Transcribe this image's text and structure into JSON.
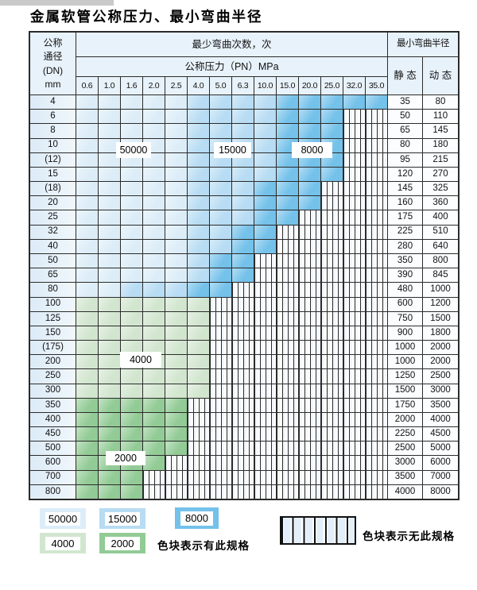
{
  "page": {
    "title": "金属软管公称压力、最小弯曲半径"
  },
  "table": {
    "dn_header_lines": [
      "公称",
      "通径",
      "(DN)",
      "mm"
    ],
    "bend_count_header": "最少弯曲次数，次",
    "pressure_header": "公称压力（PN）MPa",
    "pressure_columns": [
      "0.6",
      "1.0",
      "1.6",
      "2.0",
      "2.5",
      "4.0",
      "5.0",
      "6.3",
      "10.0",
      "15.0",
      "20.0",
      "25.0",
      "32.0",
      "35.0"
    ],
    "radius_header": "最小弯曲半径",
    "static_header": "静 态",
    "dynamic_header": "动 态",
    "bend_count_values": {
      "blue_light": "50000",
      "blue_mid": "15000",
      "blue_dark": "8000",
      "green_light": "4000",
      "green_dark": "2000"
    },
    "rows": [
      {
        "dn": "4",
        "st": "35",
        "dy": "80",
        "region": "blue",
        "last": 13,
        "mid": 5,
        "dark": 9
      },
      {
        "dn": "6",
        "st": "50",
        "dy": "110",
        "region": "blue",
        "last": 11,
        "mid": 5,
        "dark": 9
      },
      {
        "dn": "8",
        "st": "65",
        "dy": "145",
        "region": "blue",
        "last": 11,
        "mid": 5,
        "dark": 9
      },
      {
        "dn": "10",
        "st": "80",
        "dy": "180",
        "region": "blue",
        "last": 11,
        "mid": 5,
        "dark": 9
      },
      {
        "dn": "(12)",
        "st": "95",
        "dy": "215",
        "region": "blue",
        "last": 11,
        "mid": 5,
        "dark": 9
      },
      {
        "dn": "15",
        "st": "120",
        "dy": "270",
        "region": "blue",
        "last": 11,
        "mid": 5,
        "dark": 9
      },
      {
        "dn": "(18)",
        "st": "145",
        "dy": "325",
        "region": "blue",
        "last": 10,
        "mid": 5,
        "dark": 8
      },
      {
        "dn": "20",
        "st": "160",
        "dy": "360",
        "region": "blue",
        "last": 10,
        "mid": 5,
        "dark": 8
      },
      {
        "dn": "25",
        "st": "175",
        "dy": "400",
        "region": "blue",
        "last": 9,
        "mid": 5,
        "dark": 8
      },
      {
        "dn": "32",
        "st": "225",
        "dy": "510",
        "region": "blue",
        "last": 8,
        "mid": 5,
        "dark": 7
      },
      {
        "dn": "40",
        "st": "280",
        "dy": "640",
        "region": "blue",
        "last": 8,
        "mid": 5,
        "dark": 7
      },
      {
        "dn": "50",
        "st": "350",
        "dy": "800",
        "region": "blue",
        "last": 7,
        "mid": 5,
        "dark": 6
      },
      {
        "dn": "65",
        "st": "390",
        "dy": "845",
        "region": "blue",
        "last": 7,
        "mid": 5,
        "dark": 6
      },
      {
        "dn": "80",
        "st": "480",
        "dy": "1000",
        "region": "blue",
        "last": 6,
        "mid": 2,
        "dark": 5
      },
      {
        "dn": "100",
        "st": "600",
        "dy": "1200",
        "region": "g4",
        "last": 5
      },
      {
        "dn": "125",
        "st": "750",
        "dy": "1500",
        "region": "g4",
        "last": 5
      },
      {
        "dn": "150",
        "st": "900",
        "dy": "1800",
        "region": "g4",
        "last": 5
      },
      {
        "dn": "(175)",
        "st": "1000",
        "dy": "2000",
        "region": "g4",
        "last": 5
      },
      {
        "dn": "200",
        "st": "1000",
        "dy": "2000",
        "region": "g4",
        "last": 5
      },
      {
        "dn": "250",
        "st": "1250",
        "dy": "2500",
        "region": "g4",
        "last": 5
      },
      {
        "dn": "300",
        "st": "1500",
        "dy": "3000",
        "region": "g4",
        "last": 5
      },
      {
        "dn": "350",
        "st": "1750",
        "dy": "3500",
        "region": "g2",
        "last": 4
      },
      {
        "dn": "400",
        "st": "2000",
        "dy": "4000",
        "region": "g2",
        "last": 4
      },
      {
        "dn": "450",
        "st": "2250",
        "dy": "4500",
        "region": "g2",
        "last": 4
      },
      {
        "dn": "500",
        "st": "2500",
        "dy": "5000",
        "region": "g2",
        "last": 4
      },
      {
        "dn": "600",
        "st": "3000",
        "dy": "6000",
        "region": "g2",
        "last": 3
      },
      {
        "dn": "700",
        "st": "3500",
        "dy": "7000",
        "region": "g2",
        "last": 2
      },
      {
        "dn": "800",
        "st": "4000",
        "dy": "8000",
        "region": "g2",
        "last": 2
      }
    ]
  },
  "overlay_labels": [
    {
      "text": "50000"
    },
    {
      "text": "15000"
    },
    {
      "text": "8000"
    },
    {
      "text": "4000"
    },
    {
      "text": "2000"
    }
  ],
  "legend": {
    "blocks": [
      {
        "value": "50000",
        "color_key": "blue_light"
      },
      {
        "value": "15000",
        "color_key": "blue_mid"
      },
      {
        "value": "8000",
        "color_key": "blue_dark"
      },
      {
        "value": "4000",
        "color_key": "green_light"
      },
      {
        "value": "2000",
        "color_key": "green_dark"
      }
    ],
    "has_spec_text": "色块表示有此规格",
    "no_spec_text": "色块表示无此规格"
  },
  "colors": {
    "blue_light": "#dcedf8",
    "blue_mid": "#b7dcf3",
    "blue_dark": "#74c1ea",
    "green_light": "#d2e6cf",
    "green_dark": "#92cb95"
  }
}
